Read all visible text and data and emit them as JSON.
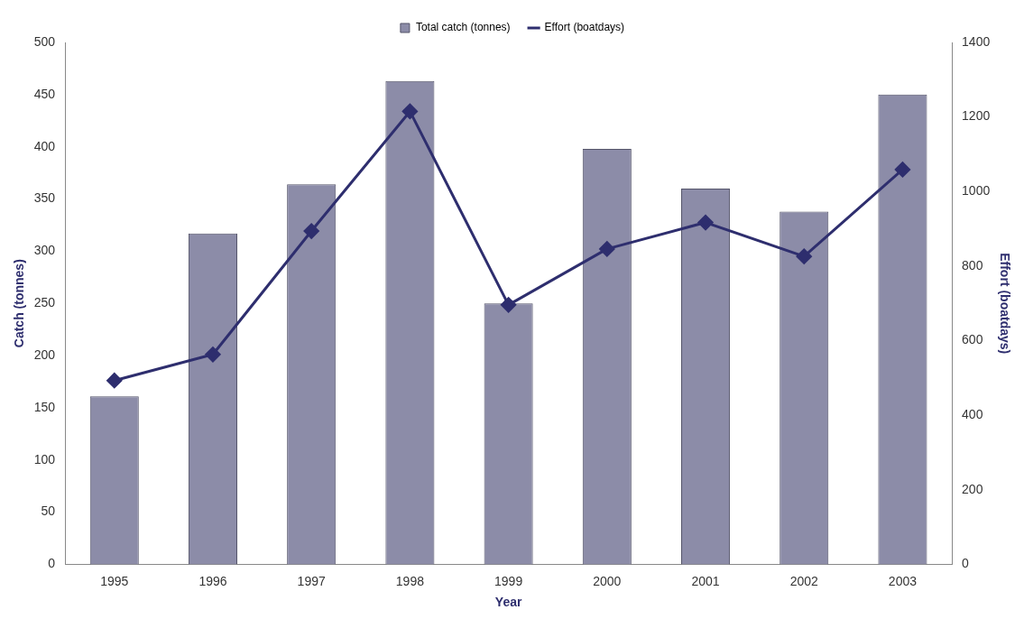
{
  "chart_data": {
    "type": "bar",
    "xlabel": "Year",
    "ylabel": "Catch (tonnes)",
    "y2label": "Effort (boatdays)",
    "categories": [
      "1995",
      "1996",
      "1997",
      "1998",
      "1999",
      "2000",
      "2001",
      "2002",
      "2003"
    ],
    "series": [
      {
        "name": "Total catch (tonnes)",
        "color": "#8c8ca8",
        "values": [
          161,
          317,
          364,
          463,
          250,
          398,
          360,
          338,
          450
        ]
      },
      {
        "name": "Effort (boatdays)",
        "type": "line",
        "axis": "y2",
        "color": "#2e2e6e",
        "values": [
          493,
          563,
          894,
          1215,
          696,
          846,
          917,
          826,
          1059
        ]
      }
    ],
    "ylim": [
      0,
      500
    ],
    "yticks": [
      0,
      50,
      100,
      150,
      200,
      250,
      300,
      350,
      400,
      450,
      500
    ],
    "y2lim": [
      0,
      1400
    ],
    "y2ticks": [
      0,
      200,
      400,
      600,
      800,
      1000,
      1200,
      1400
    ],
    "grid": false,
    "legend": "top",
    "marker": "diamond",
    "line_style": "solid"
  }
}
